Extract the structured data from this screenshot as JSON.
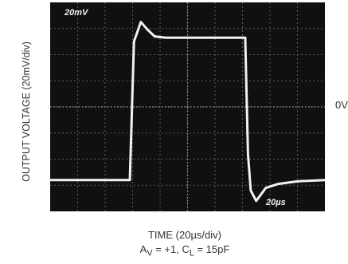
{
  "chart_data": {
    "type": "line",
    "ylabel": "OUTPUT VOLTAGE (20mV/div)",
    "xlabel": "TIME (20µs/div)",
    "zero_label": "0V",
    "screen_labels": {
      "vertical_scale": "20mV",
      "horizontal_scale": "20µs"
    },
    "conditions": {
      "av_prefix": "A",
      "av_sub": "V",
      "av_val": " = +1, C",
      "cl_sub": "L",
      "cl_val": " = 15pF"
    },
    "xlim": [
      0,
      10
    ],
    "ylim": [
      -4,
      4
    ],
    "grid": true,
    "series": [
      {
        "values_x": [
          0,
          2.9,
          3.05,
          3.3,
          3.55,
          3.8,
          4.2,
          7.1,
          7.2,
          7.3,
          7.5,
          7.85,
          8.3,
          9.0,
          10
        ],
        "values_y": [
          -2.8,
          -2.8,
          2.5,
          3.25,
          2.95,
          2.7,
          2.65,
          2.65,
          -1.8,
          -3.2,
          -3.6,
          -3.1,
          -2.95,
          -2.85,
          -2.8
        ]
      }
    ]
  }
}
